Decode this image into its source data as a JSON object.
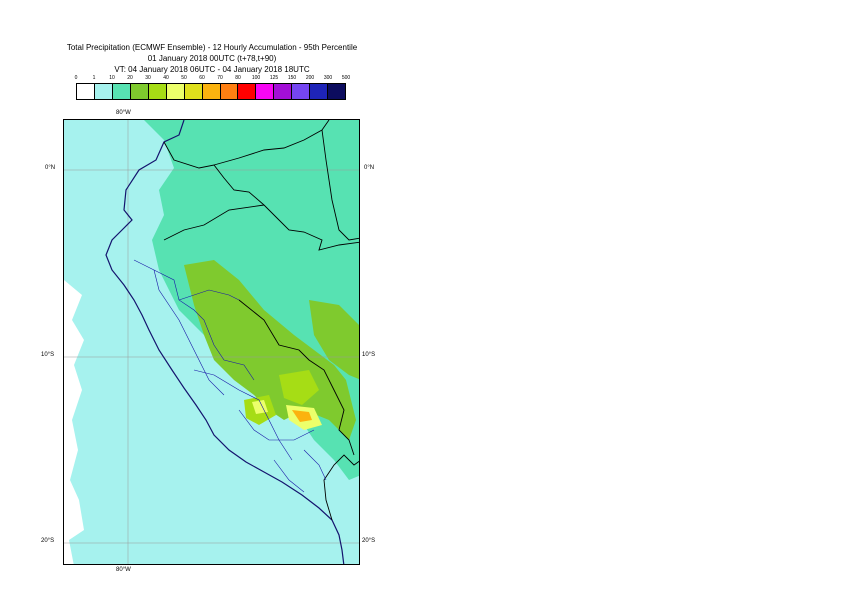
{
  "title": {
    "line1": "Total Precipitation (ECMWF Ensemble) - 12 Hourly Accumulation - 95th Percentile",
    "line2": "01 January 2018 00UTC (t+78,t+90)",
    "line3": "VT: 04 January 2018 06UTC - 04 January 2018 18UTC"
  },
  "legend": {
    "ticks": [
      "0",
      "1",
      "10",
      "20",
      "30",
      "40",
      "50",
      "60",
      "70",
      "80",
      "100",
      "125",
      "150",
      "200",
      "300",
      "500"
    ],
    "colors": [
      "#ffffff",
      "#a6f2ee",
      "#57e2b2",
      "#7fca2e",
      "#a6dd15",
      "#ecff6b",
      "#dfe01c",
      "#fbb30f",
      "#ff7f12",
      "#ff0000",
      "#f706f4",
      "#a30fd7",
      "#7546f2",
      "#1e24b8",
      "#0c0c5e"
    ]
  },
  "map": {
    "top_lon_label": "80°W",
    "bottom_lon_label": "80°W",
    "lat_labels_left": [
      "0°N",
      "10°S",
      "20°S"
    ],
    "lat_labels_right": [
      "0°N",
      "10°S",
      "20°S"
    ],
    "colors": {
      "cyan": "#a6f2ee",
      "teal": "#57e2b2",
      "green": "#7fca2e",
      "lime": "#a6dd15",
      "yellow": "#ecff6b",
      "orange": "#fbb30f",
      "border": "#000000",
      "admin": "#1a1aa8",
      "coast": "#14146e",
      "grid": "#999999"
    }
  }
}
